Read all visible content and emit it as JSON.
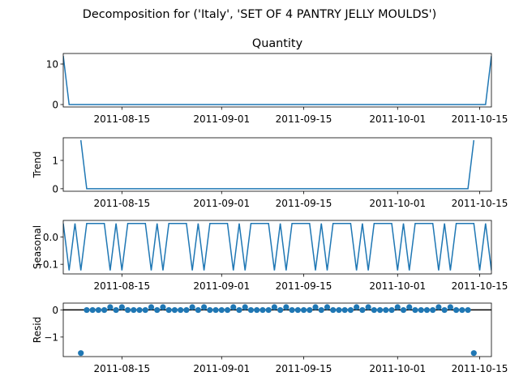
{
  "figure": {
    "suptitle": "Decomposition for ('Italy', 'SET OF 4 PANTRY JELLY MOULDS')"
  },
  "colors": {
    "series": "#1f77b4",
    "axes": "#000000",
    "background": "#ffffff"
  },
  "chart_data": [
    {
      "id": "observed",
      "type": "line",
      "title": "Quantity",
      "ylabel": "",
      "x_start": "2011-08-05",
      "x_end": "2011-10-17",
      "xlim": [
        "2011-08-05",
        "2011-10-17"
      ],
      "ylim": [
        -0.6,
        12.6
      ],
      "yticks": [
        0,
        10
      ],
      "xticks": [
        "2011-08-15",
        "2011-09-01",
        "2011-09-15",
        "2011-10-01",
        "2011-10-15"
      ],
      "grid": false,
      "values": [
        12,
        0,
        0,
        0,
        0,
        0,
        0,
        0,
        0,
        0,
        0,
        0,
        0,
        0,
        0,
        0,
        0,
        0,
        0,
        0,
        0,
        0,
        0,
        0,
        0,
        0,
        0,
        0,
        0,
        0,
        0,
        0,
        0,
        0,
        0,
        0,
        0,
        0,
        0,
        0,
        0,
        0,
        0,
        0,
        0,
        0,
        0,
        0,
        0,
        0,
        0,
        0,
        0,
        0,
        0,
        0,
        0,
        0,
        0,
        0,
        0,
        0,
        0,
        0,
        0,
        0,
        0,
        0,
        0,
        0,
        0,
        0,
        0,
        12
      ]
    },
    {
      "id": "trend",
      "type": "line",
      "title": "",
      "ylabel": "Trend",
      "x_start": "2011-08-05",
      "xlim": [
        "2011-08-05",
        "2011-10-17"
      ],
      "ylim": [
        -0.09,
        1.8
      ],
      "yticks": [
        0,
        1
      ],
      "xticks": [
        "2011-08-15",
        "2011-09-01",
        "2011-09-15",
        "2011-10-01",
        "2011-10-15"
      ],
      "grid": false,
      "values": [
        null,
        null,
        null,
        1.714,
        0,
        0,
        0,
        0,
        0,
        0,
        0,
        0,
        0,
        0,
        0,
        0,
        0,
        0,
        0,
        0,
        0,
        0,
        0,
        0,
        0,
        0,
        0,
        0,
        0,
        0,
        0,
        0,
        0,
        0,
        0,
        0,
        0,
        0,
        0,
        0,
        0,
        0,
        0,
        0,
        0,
        0,
        0,
        0,
        0,
        0,
        0,
        0,
        0,
        0,
        0,
        0,
        0,
        0,
        0,
        0,
        0,
        0,
        0,
        0,
        0,
        0,
        0,
        0,
        0,
        0,
        1.714,
        null,
        null,
        null
      ]
    },
    {
      "id": "seasonal",
      "type": "line",
      "title": "",
      "ylabel": "Seasonal",
      "x_start": "2011-08-05",
      "xlim": [
        "2011-08-05",
        "2011-10-17"
      ],
      "ylim": [
        -0.135,
        0.06
      ],
      "yticks": [
        -0.1,
        0.0
      ],
      "ytick_labels": [
        "−0.1",
        "0.0"
      ],
      "xticks": [
        "2011-08-15",
        "2011-09-01",
        "2011-09-15",
        "2011-10-01",
        "2011-10-15"
      ],
      "grid": false,
      "period_values": [
        0.049,
        -0.122,
        0.049,
        -0.122,
        0.049,
        0.049,
        0.049
      ],
      "period": 7
    },
    {
      "id": "resid",
      "type": "scatter",
      "title": "",
      "ylabel": "Resid",
      "x_start": "2011-08-05",
      "xlim": [
        "2011-08-05",
        "2011-10-17"
      ],
      "ylim": [
        -1.72,
        0.25
      ],
      "yticks": [
        -1,
        0
      ],
      "ytick_labels": [
        "−1",
        "0"
      ],
      "xticks": [
        "2011-08-15",
        "2011-09-01",
        "2011-09-15",
        "2011-10-01",
        "2011-10-15"
      ],
      "grid": false,
      "zero_line": 0,
      "values": [
        null,
        null,
        null,
        -1.592,
        -0.005,
        -0.005,
        -0.005,
        -0.005,
        0.1,
        -0.005,
        0.1,
        -0.005,
        -0.005,
        -0.005,
        -0.005,
        0.1,
        -0.005,
        0.1,
        -0.005,
        -0.005,
        -0.005,
        -0.005,
        0.1,
        -0.005,
        0.1,
        -0.005,
        -0.005,
        -0.005,
        -0.005,
        0.1,
        -0.005,
        0.1,
        -0.005,
        -0.005,
        -0.005,
        -0.005,
        0.1,
        -0.005,
        0.1,
        -0.005,
        -0.005,
        -0.005,
        -0.005,
        0.1,
        -0.005,
        0.1,
        -0.005,
        -0.005,
        -0.005,
        -0.005,
        0.1,
        -0.005,
        0.1,
        -0.005,
        -0.005,
        -0.005,
        -0.005,
        0.1,
        -0.005,
        0.1,
        -0.005,
        -0.005,
        -0.005,
        -0.005,
        0.1,
        -0.005,
        0.1,
        -0.005,
        -0.005,
        -0.005,
        -1.592,
        null,
        null,
        null
      ]
    }
  ]
}
